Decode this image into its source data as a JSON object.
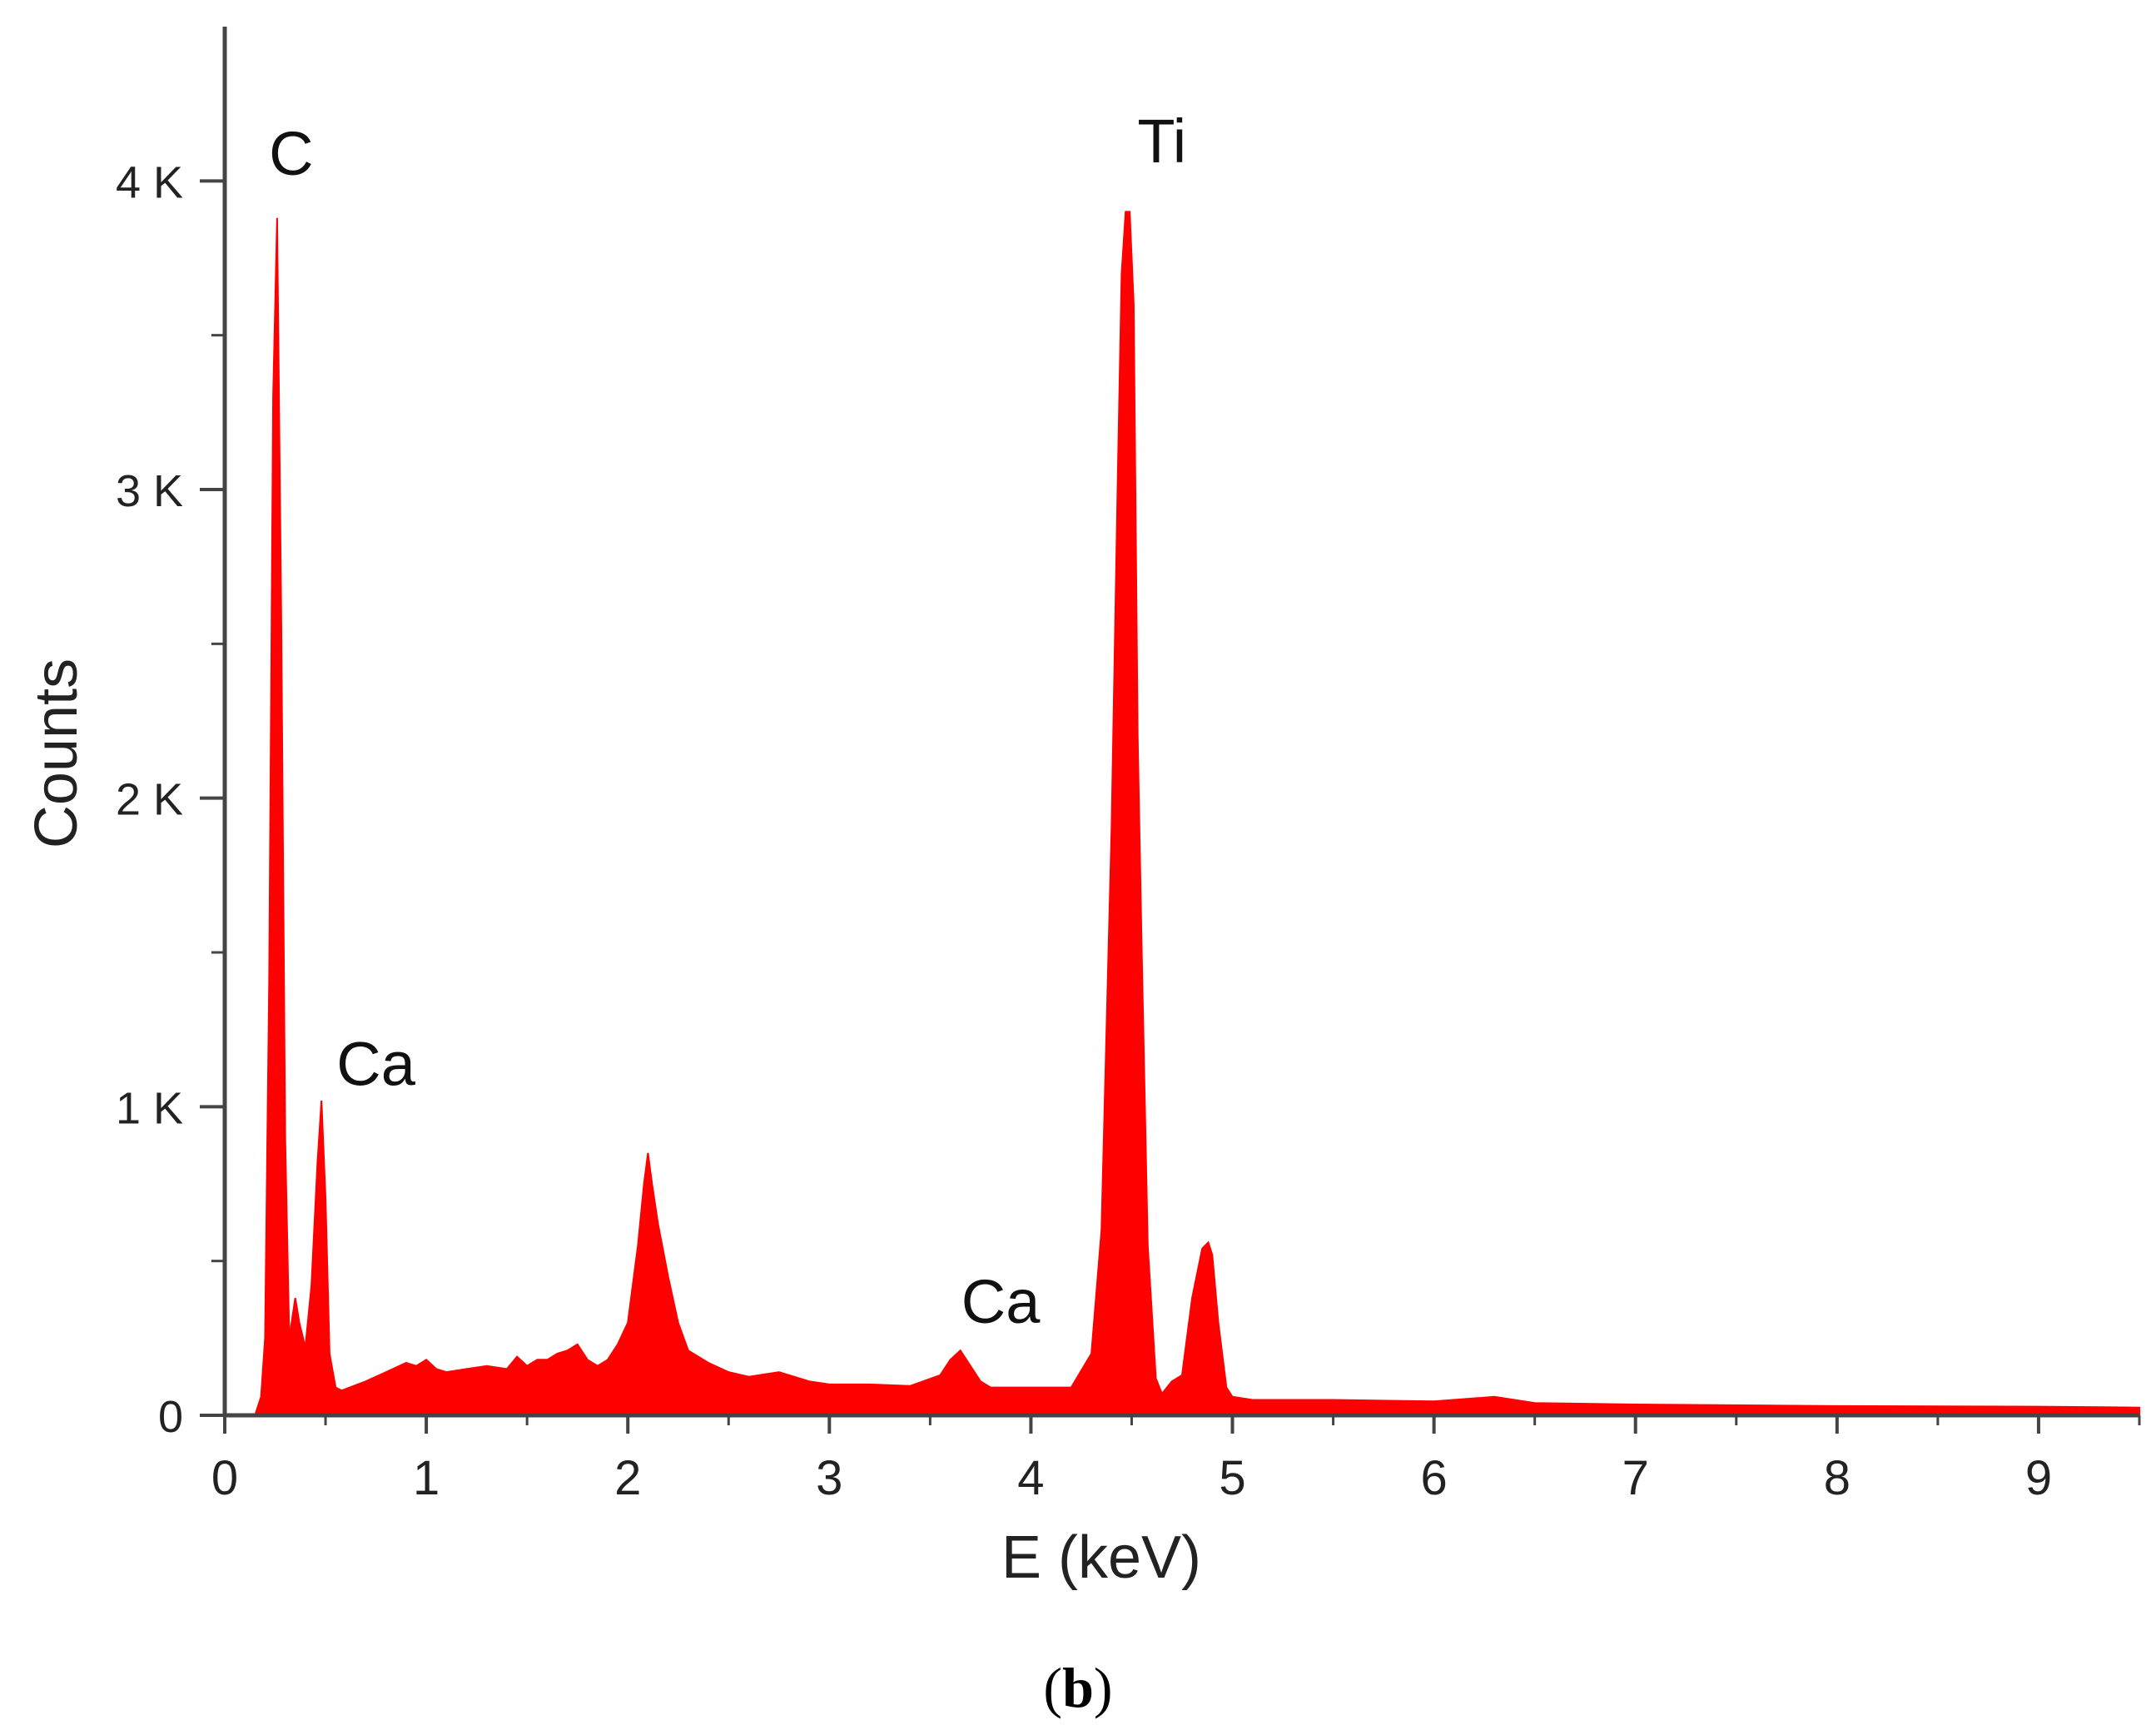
{
  "chart_data": {
    "type": "area",
    "title": "",
    "xlabel": "E (keV)",
    "ylabel": "Counts",
    "xlim": [
      0,
      9.5
    ],
    "ylim": [
      0,
      4500
    ],
    "x_ticks": [
      0,
      1,
      2,
      3,
      4,
      5,
      6,
      7,
      8,
      9
    ],
    "x_tick_labels": [
      "0",
      "1",
      "2",
      "3",
      "4",
      "5",
      "6",
      "7",
      "8",
      "9"
    ],
    "y_ticks": [
      0,
      1000,
      2000,
      3000,
      4000
    ],
    "y_tick_labels": [
      "0",
      "1 K",
      "2 K",
      "3 K",
      "4 K"
    ],
    "y_minor_ticks": [
      500,
      1500,
      2500,
      3500
    ],
    "grid": false,
    "legend": "none",
    "fill_color": "#ff0000",
    "series": [
      {
        "x": [
          0.1,
          0.15,
          0.18,
          0.2,
          0.22,
          0.24,
          0.26,
          0.28,
          0.3,
          0.32,
          0.35,
          0.37,
          0.4,
          0.43,
          0.46,
          0.48,
          0.5,
          0.52,
          0.55,
          0.58,
          0.62,
          0.7,
          0.8,
          0.9,
          0.95,
          1.0,
          1.05,
          1.1,
          1.2,
          1.3,
          1.4,
          1.45,
          1.5,
          1.55,
          1.6,
          1.65,
          1.7,
          1.75,
          1.8,
          1.85,
          1.9,
          1.95,
          2.0,
          2.05,
          2.08,
          2.1,
          2.12,
          2.15,
          2.2,
          2.25,
          2.3,
          2.4,
          2.5,
          2.6,
          2.75,
          2.9,
          3.0,
          3.2,
          3.4,
          3.55,
          3.6,
          3.65,
          3.7,
          3.75,
          3.8,
          3.9,
          4.0,
          4.2,
          4.3,
          4.35,
          4.4,
          4.43,
          4.45,
          4.47,
          4.49,
          4.51,
          4.53,
          4.55,
          4.58,
          4.62,
          4.65,
          4.7,
          4.75,
          4.8,
          4.85,
          4.88,
          4.9,
          4.93,
          4.97,
          5.0,
          5.1,
          5.5,
          6.0,
          6.3,
          6.5,
          7.0,
          8.0,
          9.0,
          9.5
        ],
        "y": [
          0,
          0,
          60,
          250,
          1400,
          3300,
          3880,
          2600,
          900,
          250,
          380,
          300,
          220,
          420,
          820,
          1020,
          700,
          200,
          90,
          80,
          90,
          110,
          140,
          170,
          160,
          180,
          150,
          140,
          150,
          160,
          150,
          190,
          160,
          180,
          180,
          200,
          210,
          230,
          180,
          160,
          180,
          230,
          300,
          550,
          750,
          850,
          750,
          620,
          450,
          300,
          210,
          170,
          140,
          125,
          140,
          110,
          100,
          100,
          95,
          130,
          180,
          210,
          160,
          110,
          90,
          90,
          90,
          90,
          200,
          600,
          1900,
          3000,
          3700,
          3900,
          3900,
          3600,
          2200,
          1500,
          550,
          120,
          70,
          110,
          130,
          380,
          540,
          560,
          520,
          300,
          90,
          60,
          50,
          50,
          45,
          60,
          40,
          35,
          30,
          28,
          25
        ]
      }
    ],
    "annotations": [
      {
        "text": "C",
        "x": 0.33,
        "y": 4020
      },
      {
        "text": "Ti",
        "x": 4.65,
        "y": 4060
      },
      {
        "text": "Ca",
        "x": 0.75,
        "y": 1070
      },
      {
        "text": "Ca",
        "x": 3.85,
        "y": 300
      }
    ],
    "panel_label_parts": [
      "(",
      "b",
      ")"
    ]
  }
}
